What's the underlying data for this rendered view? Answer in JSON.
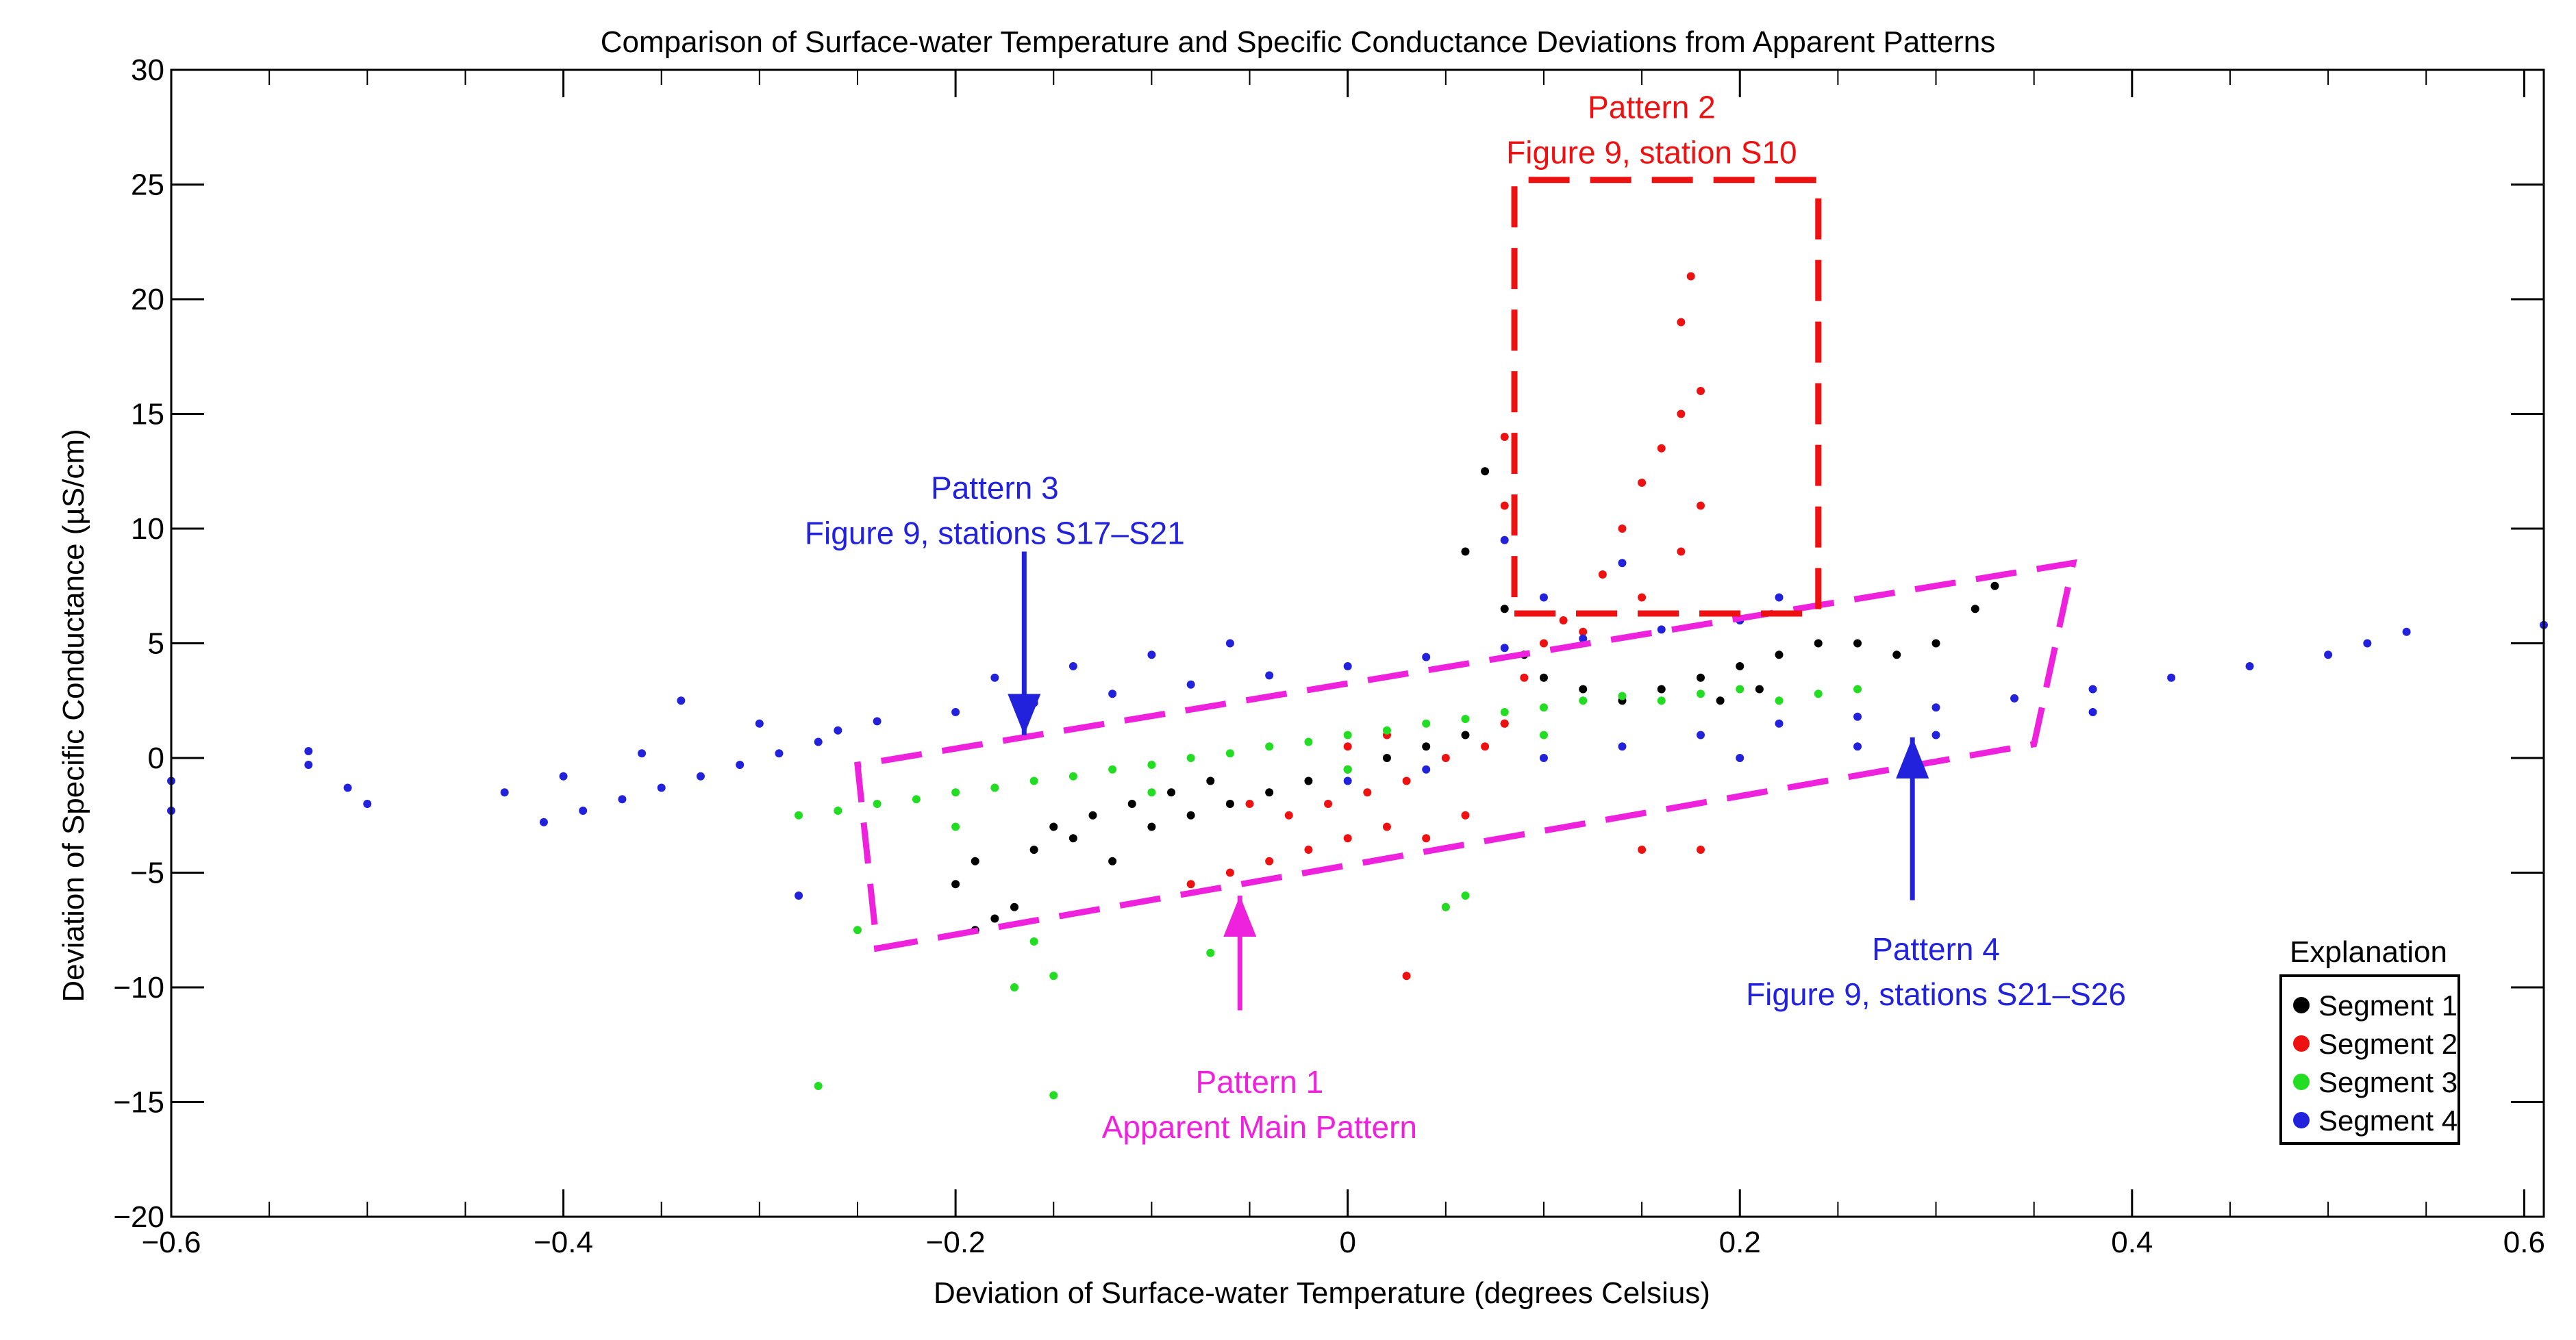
{
  "chart_data": {
    "type": "scatter",
    "title": "Comparison of Surface-water Temperature and Specific Conductance Deviations from Apparent Patterns",
    "xlabel": "Deviation of Surface-water Temperature (degrees Celsius)",
    "ylabel": "Deviation of Specific Conductance (µS/cm)",
    "xlim": [
      -0.6,
      0.61
    ],
    "ylim": [
      -20,
      30
    ],
    "xticks": [
      {
        "v": -0.6,
        "label": "−0.6"
      },
      {
        "v": -0.4,
        "label": "−0.4"
      },
      {
        "v": -0.2,
        "label": "−0.2"
      },
      {
        "v": 0,
        "label": "0"
      },
      {
        "v": 0.2,
        "label": "0.2"
      },
      {
        "v": 0.4,
        "label": "0.4"
      },
      {
        "v": 0.6,
        "label": "0.6"
      }
    ],
    "yticks": [
      {
        "v": -20,
        "label": "−20"
      },
      {
        "v": -15,
        "label": "−15"
      },
      {
        "v": -10,
        "label": "−10"
      },
      {
        "v": -5,
        "label": "−5"
      },
      {
        "v": 0,
        "label": "0"
      },
      {
        "v": 5,
        "label": "5"
      },
      {
        "v": 10,
        "label": "10"
      },
      {
        "v": 15,
        "label": "15"
      },
      {
        "v": 20,
        "label": "20"
      },
      {
        "v": 25,
        "label": "25"
      },
      {
        "v": 30,
        "label": "30"
      }
    ],
    "legend": {
      "title": "Explanation",
      "position": "bottom-right",
      "entries": [
        {
          "name": "Segment 1",
          "color": "#000000"
        },
        {
          "name": "Segment 2",
          "color": "#ee1111"
        },
        {
          "name": "Segment 3",
          "color": "#22dd22"
        },
        {
          "name": "Segment 4",
          "color": "#2222dd"
        }
      ]
    },
    "series": [
      {
        "name": "Segment 1",
        "color": "#000000",
        "points": [
          [
            -0.19,
            -7.5
          ],
          [
            -0.18,
            -7.0
          ],
          [
            -0.17,
            -6.5
          ],
          [
            -0.2,
            -5.5
          ],
          [
            -0.19,
            -4.5
          ],
          [
            -0.16,
            -4.0
          ],
          [
            -0.14,
            -3.5
          ],
          [
            -0.12,
            -4.5
          ],
          [
            -0.1,
            -3.0
          ],
          [
            -0.08,
            -2.5
          ],
          [
            -0.06,
            -2.0
          ],
          [
            -0.04,
            -1.5
          ],
          [
            -0.02,
            -1.0
          ],
          [
            0.0,
            -0.5
          ],
          [
            0.02,
            0.0
          ],
          [
            0.04,
            0.5
          ],
          [
            0.06,
            1.0
          ],
          [
            0.08,
            1.5
          ],
          [
            0.09,
            4.5
          ],
          [
            0.1,
            3.5
          ],
          [
            0.12,
            3.0
          ],
          [
            0.14,
            2.5
          ],
          [
            0.16,
            3.0
          ],
          [
            0.18,
            3.5
          ],
          [
            0.2,
            4.0
          ],
          [
            0.22,
            4.5
          ],
          [
            0.24,
            5.0
          ],
          [
            0.26,
            5.0
          ],
          [
            0.28,
            4.5
          ],
          [
            0.3,
            5.0
          ],
          [
            0.32,
            6.5
          ],
          [
            0.33,
            7.5
          ],
          [
            0.07,
            12.5
          ],
          [
            0.06,
            9.0
          ],
          [
            0.08,
            6.5
          ],
          [
            -0.15,
            -3.0
          ],
          [
            -0.13,
            -2.5
          ],
          [
            -0.11,
            -2.0
          ],
          [
            -0.09,
            -1.5
          ],
          [
            -0.07,
            -1.0
          ],
          [
            0.19,
            2.5
          ],
          [
            0.21,
            3.0
          ]
        ]
      },
      {
        "name": "Segment 2",
        "color": "#ee1111",
        "points": [
          [
            -0.08,
            -5.5
          ],
          [
            -0.06,
            -5.0
          ],
          [
            -0.04,
            -4.5
          ],
          [
            -0.02,
            -4.0
          ],
          [
            0.0,
            -3.5
          ],
          [
            0.02,
            -3.0
          ],
          [
            0.04,
            -3.5
          ],
          [
            0.05,
            -6.5
          ],
          [
            0.06,
            -2.5
          ],
          [
            -0.03,
            -2.5
          ],
          [
            -0.01,
            -2.0
          ],
          [
            0.01,
            -1.5
          ],
          [
            0.03,
            -1.0
          ],
          [
            0.05,
            0.0
          ],
          [
            0.07,
            0.5
          ],
          [
            0.08,
            1.5
          ],
          [
            0.09,
            3.5
          ],
          [
            0.1,
            5.0
          ],
          [
            0.12,
            5.5
          ],
          [
            0.13,
            8.0
          ],
          [
            0.14,
            10.0
          ],
          [
            0.15,
            12.0
          ],
          [
            0.16,
            13.5
          ],
          [
            0.17,
            15.0
          ],
          [
            0.17,
            19.0
          ],
          [
            0.175,
            21.0
          ],
          [
            0.18,
            16.0
          ],
          [
            0.18,
            11.0
          ],
          [
            0.17,
            9.0
          ],
          [
            0.15,
            7.0
          ],
          [
            0.11,
            6.0
          ],
          [
            0.08,
            14.0
          ],
          [
            0.08,
            11.0
          ],
          [
            0.03,
            -9.5
          ],
          [
            0.15,
            -4.0
          ],
          [
            0.18,
            -4.0
          ],
          [
            -0.05,
            -2.0
          ],
          [
            0.0,
            0.5
          ],
          [
            0.02,
            1.0
          ]
        ]
      },
      {
        "name": "Segment 3",
        "color": "#22dd22",
        "points": [
          [
            -0.28,
            -2.5
          ],
          [
            -0.26,
            -2.3
          ],
          [
            -0.24,
            -2.0
          ],
          [
            -0.22,
            -1.8
          ],
          [
            -0.2,
            -1.5
          ],
          [
            -0.18,
            -1.3
          ],
          [
            -0.16,
            -1.0
          ],
          [
            -0.14,
            -0.8
          ],
          [
            -0.12,
            -0.5
          ],
          [
            -0.1,
            -0.3
          ],
          [
            -0.08,
            0.0
          ],
          [
            -0.06,
            0.2
          ],
          [
            -0.04,
            0.5
          ],
          [
            -0.02,
            0.7
          ],
          [
            0.0,
            1.0
          ],
          [
            0.02,
            1.2
          ],
          [
            0.04,
            1.5
          ],
          [
            0.06,
            1.7
          ],
          [
            0.08,
            2.0
          ],
          [
            0.1,
            2.2
          ],
          [
            0.12,
            2.5
          ],
          [
            0.14,
            2.7
          ],
          [
            0.16,
            2.5
          ],
          [
            0.18,
            2.8
          ],
          [
            0.2,
            3.0
          ],
          [
            0.22,
            2.5
          ],
          [
            0.24,
            2.8
          ],
          [
            0.26,
            3.0
          ],
          [
            -0.2,
            -3.0
          ],
          [
            -0.1,
            -1.5
          ],
          [
            0.0,
            -0.5
          ],
          [
            0.1,
            1.0
          ],
          [
            -0.15,
            -9.5
          ],
          [
            -0.16,
            -8.0
          ],
          [
            -0.17,
            -10.0
          ],
          [
            -0.27,
            -14.3
          ],
          [
            -0.15,
            -14.7
          ],
          [
            -0.07,
            -8.5
          ],
          [
            -0.25,
            -7.5
          ],
          [
            0.05,
            -6.5
          ],
          [
            0.06,
            -6.0
          ]
        ]
      },
      {
        "name": "Segment 4",
        "color": "#2222dd",
        "points": [
          [
            -0.6,
            -1.0
          ],
          [
            -0.6,
            -2.3
          ],
          [
            -0.53,
            0.3
          ],
          [
            -0.53,
            -0.3
          ],
          [
            -0.51,
            -1.3
          ],
          [
            -0.5,
            -2.0
          ],
          [
            -0.43,
            -1.5
          ],
          [
            -0.41,
            -2.8
          ],
          [
            -0.39,
            -2.3
          ],
          [
            -0.37,
            -1.8
          ],
          [
            -0.35,
            -1.3
          ],
          [
            -0.33,
            -0.8
          ],
          [
            -0.31,
            -0.3
          ],
          [
            -0.29,
            0.2
          ],
          [
            -0.27,
            0.7
          ],
          [
            -0.4,
            -0.8
          ],
          [
            -0.36,
            0.2
          ],
          [
            -0.34,
            2.5
          ],
          [
            -0.3,
            1.5
          ],
          [
            -0.26,
            1.2
          ],
          [
            -0.24,
            1.6
          ],
          [
            -0.2,
            2.0
          ],
          [
            -0.16,
            2.4
          ],
          [
            -0.12,
            2.8
          ],
          [
            -0.08,
            3.2
          ],
          [
            -0.04,
            3.6
          ],
          [
            0.0,
            4.0
          ],
          [
            0.04,
            4.4
          ],
          [
            0.08,
            4.8
          ],
          [
            0.12,
            5.2
          ],
          [
            0.16,
            5.6
          ],
          [
            0.2,
            6.0
          ],
          [
            0.22,
            7.0
          ],
          [
            -0.18,
            3.5
          ],
          [
            -0.14,
            4.0
          ],
          [
            -0.1,
            4.5
          ],
          [
            -0.06,
            5.0
          ],
          [
            0.08,
            9.5
          ],
          [
            0.1,
            7.0
          ],
          [
            0.14,
            8.5
          ],
          [
            0.0,
            -1.0
          ],
          [
            0.04,
            -0.5
          ],
          [
            0.1,
            0.0
          ],
          [
            0.14,
            0.5
          ],
          [
            0.18,
            1.0
          ],
          [
            0.22,
            1.5
          ],
          [
            0.26,
            1.8
          ],
          [
            0.3,
            2.2
          ],
          [
            0.34,
            2.6
          ],
          [
            0.38,
            3.0
          ],
          [
            0.42,
            3.5
          ],
          [
            0.46,
            4.0
          ],
          [
            0.5,
            4.5
          ],
          [
            0.52,
            5.0
          ],
          [
            0.54,
            5.5
          ],
          [
            0.61,
            5.8
          ],
          [
            0.2,
            0.0
          ],
          [
            0.26,
            0.5
          ],
          [
            0.3,
            1.0
          ],
          [
            0.38,
            2.0
          ],
          [
            -0.28,
            -6.0
          ]
        ]
      }
    ],
    "boxes": [
      {
        "name": "pattern-1-box",
        "color": "#ee22dd",
        "corners": [
          [
            -0.24,
            -8.3
          ],
          [
            0.35,
            0.6
          ],
          [
            0.37,
            8.5
          ],
          [
            -0.25,
            -0.3
          ]
        ]
      },
      {
        "name": "pattern-2-box",
        "color": "#ee1111",
        "corners": [
          [
            0.085,
            6.3
          ],
          [
            0.24,
            6.3
          ],
          [
            0.24,
            25.2
          ],
          [
            0.085,
            25.2
          ]
        ]
      }
    ],
    "annotations": [
      {
        "name": "pattern-1",
        "color": "#ee22dd",
        "lines": [
          "Pattern 1",
          "Apparent Main Pattern"
        ],
        "x": -0.045,
        "y": -14.6,
        "arrow_to": [
          -0.055,
          -6.0
        ],
        "arrow_from": [
          -0.055,
          -11.0
        ]
      },
      {
        "name": "pattern-2",
        "color": "#ee1111",
        "lines": [
          "Pattern 2",
          "Figure 9, station S10"
        ],
        "x": 0.155,
        "y": 27.9
      },
      {
        "name": "pattern-3",
        "color": "#2222dd",
        "lines": [
          "Pattern 3",
          "Figure 9, stations S17–S21"
        ],
        "x": -0.18,
        "y": 11.3,
        "arrow_to": [
          -0.165,
          1.0
        ],
        "arrow_from": [
          -0.165,
          9.0
        ]
      },
      {
        "name": "pattern-4",
        "color": "#2222dd",
        "lines": [
          "Pattern 4",
          "Figure 9, stations S21–S26"
        ],
        "x": 0.3,
        "y": -8.8,
        "arrow_to": [
          0.288,
          0.9
        ],
        "arrow_from": [
          0.288,
          -6.2
        ]
      }
    ]
  }
}
